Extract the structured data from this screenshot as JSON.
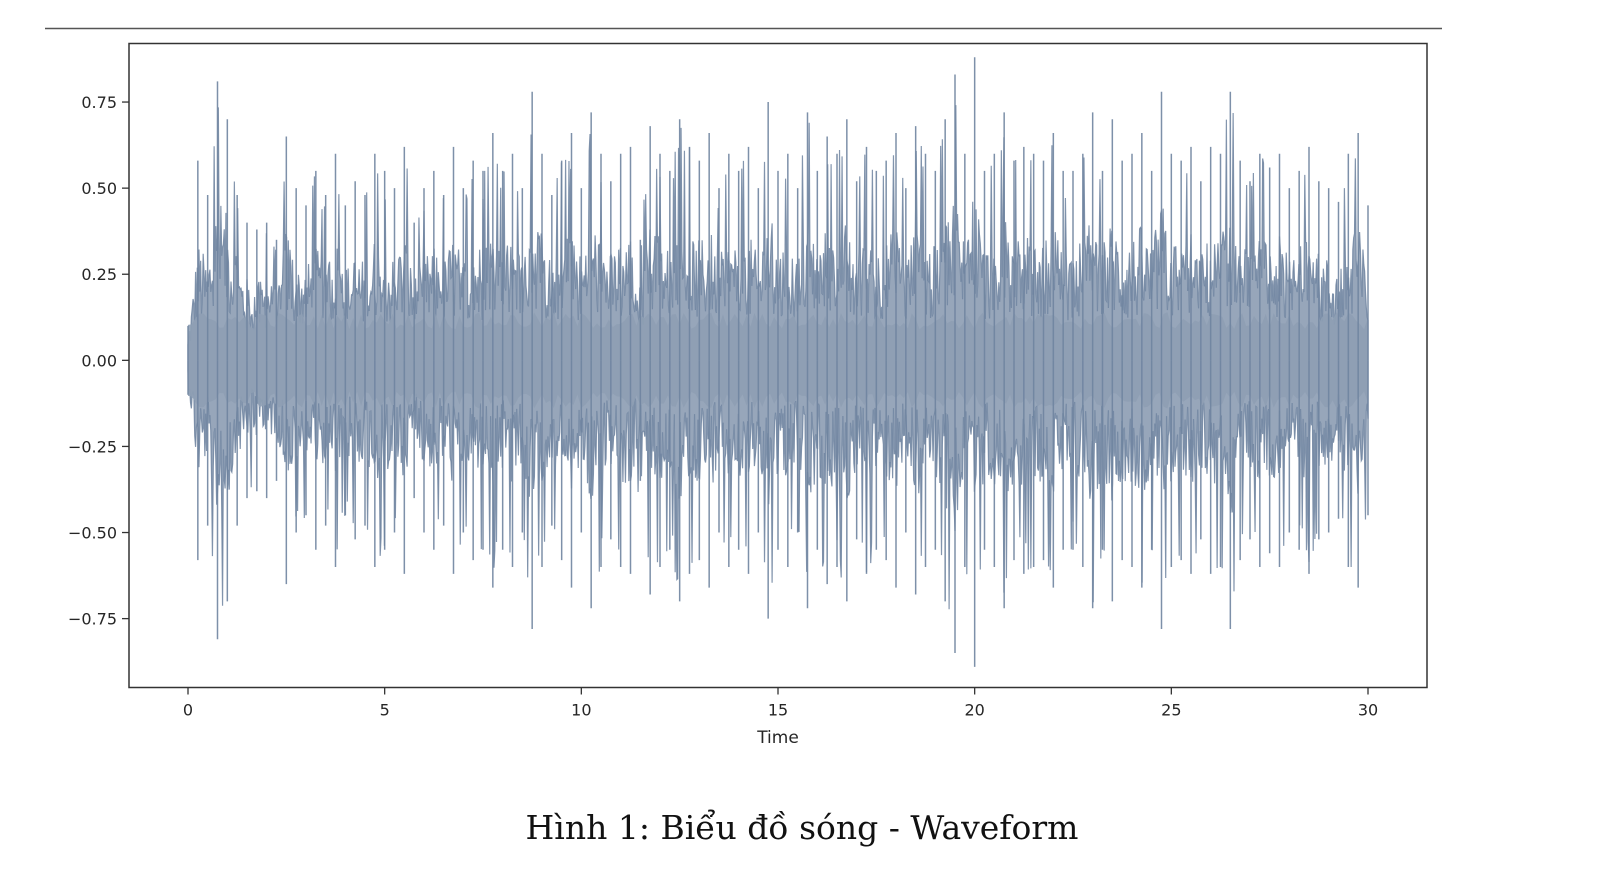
{
  "caption": "Hình 1: Biểu đồ sóng - Waveform",
  "chart_data": {
    "type": "area",
    "title": "",
    "xlabel": "Time",
    "ylabel": "",
    "xlim": [
      -1.5,
      31.5
    ],
    "ylim": [
      -0.95,
      0.92
    ],
    "xticks": [
      0,
      5,
      10,
      15,
      20,
      25,
      30
    ],
    "xtick_labels": [
      "0",
      "5",
      "10",
      "15",
      "20",
      "25",
      "30"
    ],
    "yticks": [
      0.75,
      0.5,
      0.25,
      0.0,
      -0.25,
      -0.5,
      -0.75
    ],
    "ytick_labels": [
      "0.75",
      "0.50",
      "0.25",
      "0.00",
      "−0.25",
      "−0.50",
      "−0.75"
    ],
    "grid": false,
    "legend": "none",
    "colors": {
      "waveform": "#6f84a0",
      "axes": "#333333"
    },
    "series": [
      {
        "x": [
          0.0,
          0.25,
          0.5,
          0.75,
          1.0,
          1.25,
          1.5,
          1.75,
          2.0,
          2.25,
          2.5,
          2.75,
          3.0,
          3.25,
          3.5,
          3.75,
          4.0,
          4.25,
          4.5,
          4.75,
          5.0,
          5.25,
          5.5,
          5.75,
          6.0,
          6.25,
          6.5,
          6.75,
          7.0,
          7.25,
          7.5,
          7.75,
          8.0,
          8.25,
          8.5,
          8.75,
          9.0,
          9.25,
          9.5,
          9.75,
          10.0,
          10.25,
          10.5,
          10.75,
          11.0,
          11.25,
          11.5,
          11.75,
          12.0,
          12.25,
          12.5,
          12.75,
          13.0,
          13.25,
          13.5,
          13.75,
          14.0,
          14.25,
          14.5,
          14.75,
          15.0,
          15.25,
          15.5,
          15.75,
          16.0,
          16.25,
          16.5,
          16.75,
          17.0,
          17.25,
          17.5,
          17.75,
          18.0,
          18.25,
          18.5,
          18.75,
          19.0,
          19.25,
          19.5,
          19.75,
          20.0,
          20.25,
          20.5,
          20.75,
          21.0,
          21.25,
          21.5,
          21.75,
          22.0,
          22.25,
          22.5,
          22.75,
          23.0,
          23.25,
          23.5,
          23.75,
          24.0,
          24.25,
          24.5,
          24.75,
          25.0,
          25.25,
          25.5,
          25.75,
          26.0,
          26.25,
          26.5,
          26.75,
          27.0,
          27.25,
          27.5,
          27.75,
          28.0,
          28.25,
          28.5,
          28.75,
          29.0,
          29.25,
          29.5,
          29.75,
          30.0
        ],
        "upper": [
          0.1,
          0.58,
          0.48,
          0.81,
          0.7,
          0.48,
          0.4,
          0.38,
          0.4,
          0.35,
          0.65,
          0.5,
          0.45,
          0.55,
          0.48,
          0.6,
          0.45,
          0.52,
          0.48,
          0.6,
          0.55,
          0.5,
          0.62,
          0.4,
          0.5,
          0.55,
          0.48,
          0.62,
          0.5,
          0.58,
          0.55,
          0.66,
          0.55,
          0.6,
          0.5,
          0.78,
          0.6,
          0.48,
          0.58,
          0.66,
          0.5,
          0.72,
          0.6,
          0.52,
          0.6,
          0.62,
          0.35,
          0.68,
          0.6,
          0.55,
          0.7,
          0.62,
          0.58,
          0.66,
          0.5,
          0.6,
          0.55,
          0.62,
          0.5,
          0.75,
          0.55,
          0.6,
          0.5,
          0.72,
          0.55,
          0.65,
          0.6,
          0.7,
          0.52,
          0.62,
          0.55,
          0.58,
          0.66,
          0.5,
          0.68,
          0.6,
          0.55,
          0.7,
          0.83,
          0.6,
          0.88,
          0.55,
          0.6,
          0.72,
          0.58,
          0.62,
          0.6,
          0.58,
          0.66,
          0.55,
          0.55,
          0.6,
          0.72,
          0.55,
          0.7,
          0.58,
          0.6,
          0.66,
          0.55,
          0.78,
          0.6,
          0.58,
          0.62,
          0.52,
          0.62,
          0.6,
          0.78,
          0.58,
          0.52,
          0.6,
          0.56,
          0.6,
          0.5,
          0.55,
          0.62,
          0.52,
          0.5,
          0.46,
          0.6,
          0.66,
          0.45
        ],
        "lower": [
          -0.1,
          -0.58,
          -0.48,
          -0.81,
          -0.7,
          -0.48,
          -0.4,
          -0.38,
          -0.4,
          -0.35,
          -0.65,
          -0.5,
          -0.45,
          -0.55,
          -0.48,
          -0.6,
          -0.45,
          -0.52,
          -0.48,
          -0.6,
          -0.55,
          -0.5,
          -0.62,
          -0.4,
          -0.5,
          -0.55,
          -0.48,
          -0.62,
          -0.5,
          -0.58,
          -0.55,
          -0.66,
          -0.55,
          -0.6,
          -0.5,
          -0.78,
          -0.6,
          -0.48,
          -0.58,
          -0.66,
          -0.5,
          -0.72,
          -0.6,
          -0.52,
          -0.6,
          -0.62,
          -0.35,
          -0.68,
          -0.6,
          -0.55,
          -0.7,
          -0.62,
          -0.58,
          -0.66,
          -0.5,
          -0.6,
          -0.55,
          -0.62,
          -0.5,
          -0.75,
          -0.55,
          -0.6,
          -0.5,
          -0.72,
          -0.55,
          -0.65,
          -0.6,
          -0.7,
          -0.52,
          -0.62,
          -0.55,
          -0.58,
          -0.66,
          -0.5,
          -0.68,
          -0.6,
          -0.55,
          -0.7,
          -0.85,
          -0.6,
          -0.89,
          -0.55,
          -0.6,
          -0.72,
          -0.58,
          -0.62,
          -0.6,
          -0.58,
          -0.66,
          -0.55,
          -0.55,
          -0.6,
          -0.72,
          -0.55,
          -0.7,
          -0.58,
          -0.6,
          -0.66,
          -0.55,
          -0.78,
          -0.6,
          -0.58,
          -0.62,
          -0.52,
          -0.62,
          -0.6,
          -0.78,
          -0.58,
          -0.52,
          -0.6,
          -0.56,
          -0.6,
          -0.5,
          -0.55,
          -0.62,
          -0.52,
          -0.5,
          -0.46,
          -0.6,
          -0.66,
          -0.45
        ]
      }
    ]
  }
}
